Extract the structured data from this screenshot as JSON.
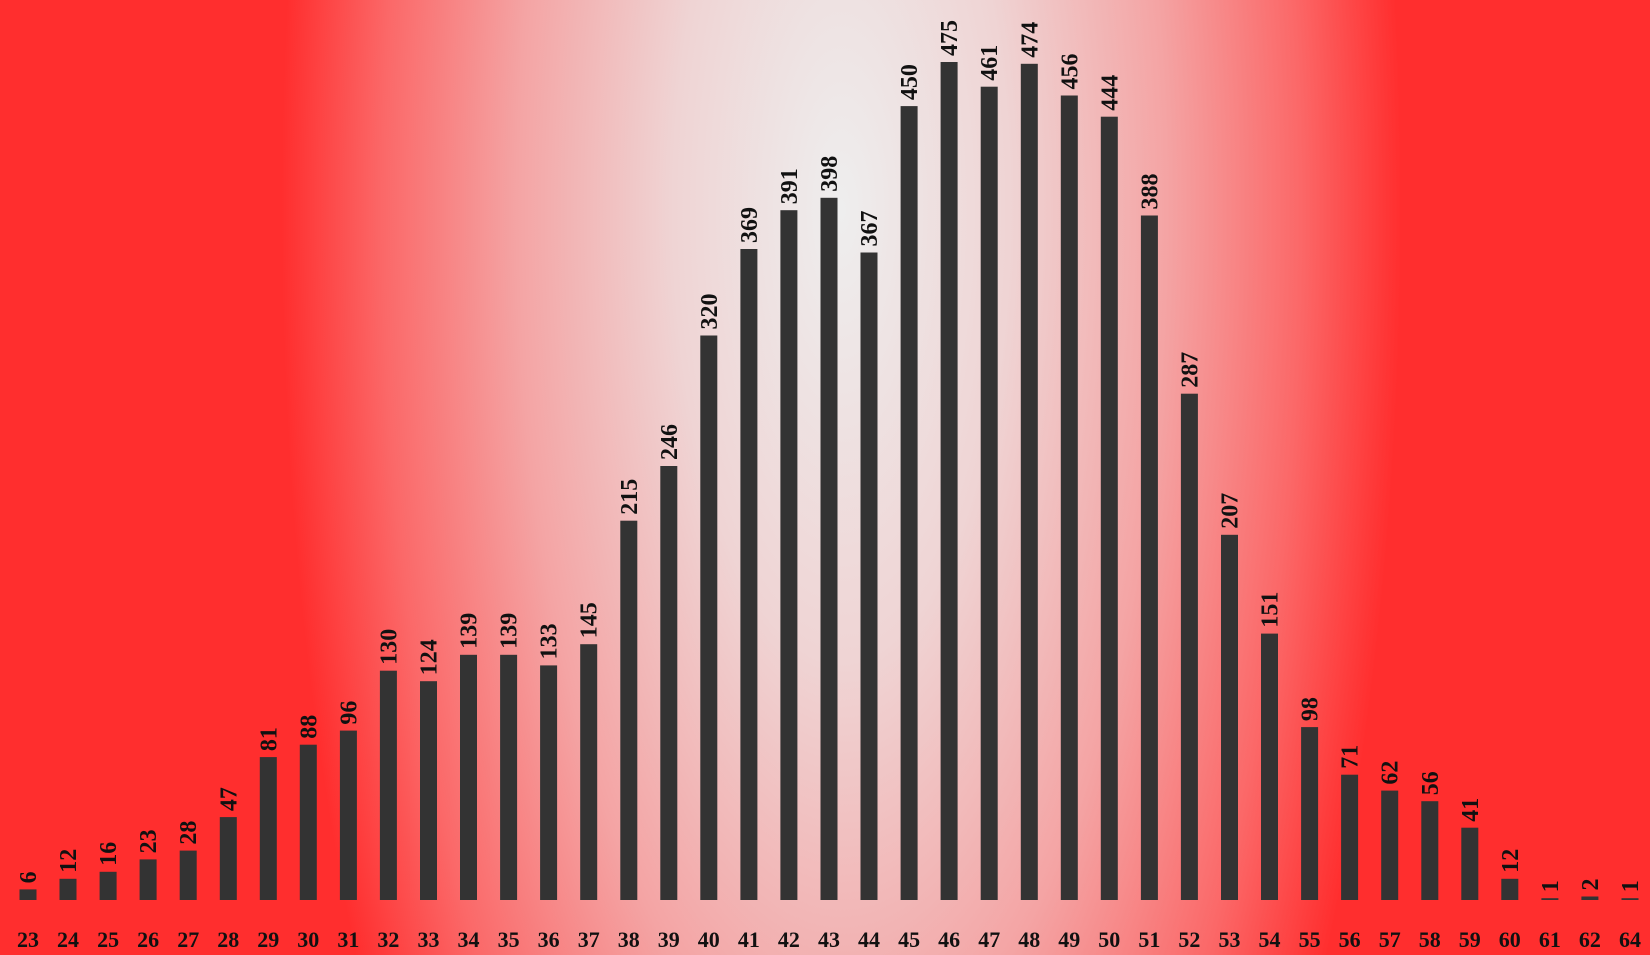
{
  "colors": {
    "bar": "#333333",
    "text": "#111111",
    "bg_center": "#eeeeee",
    "bg_edge": "#ff2e2e"
  },
  "chart_data": {
    "type": "bar",
    "title": "",
    "xlabel": "",
    "ylabel": "",
    "categories": [
      "23",
      "24",
      "25",
      "26",
      "27",
      "28",
      "29",
      "30",
      "31",
      "32",
      "33",
      "34",
      "35",
      "36",
      "37",
      "38",
      "39",
      "40",
      "41",
      "42",
      "43",
      "44",
      "45",
      "46",
      "47",
      "48",
      "49",
      "50",
      "51",
      "52",
      "53",
      "54",
      "55",
      "56",
      "57",
      "58",
      "59",
      "60",
      "61",
      "62",
      "64"
    ],
    "values": [
      6,
      12,
      16,
      23,
      28,
      47,
      81,
      88,
      96,
      130,
      124,
      139,
      139,
      133,
      145,
      215,
      246,
      320,
      369,
      391,
      398,
      367,
      450,
      475,
      461,
      474,
      456,
      444,
      388,
      287,
      207,
      151,
      98,
      71,
      62,
      56,
      41,
      12,
      1,
      2,
      1
    ],
    "ylim": [
      0,
      500
    ],
    "grid": false,
    "legend": "none"
  }
}
